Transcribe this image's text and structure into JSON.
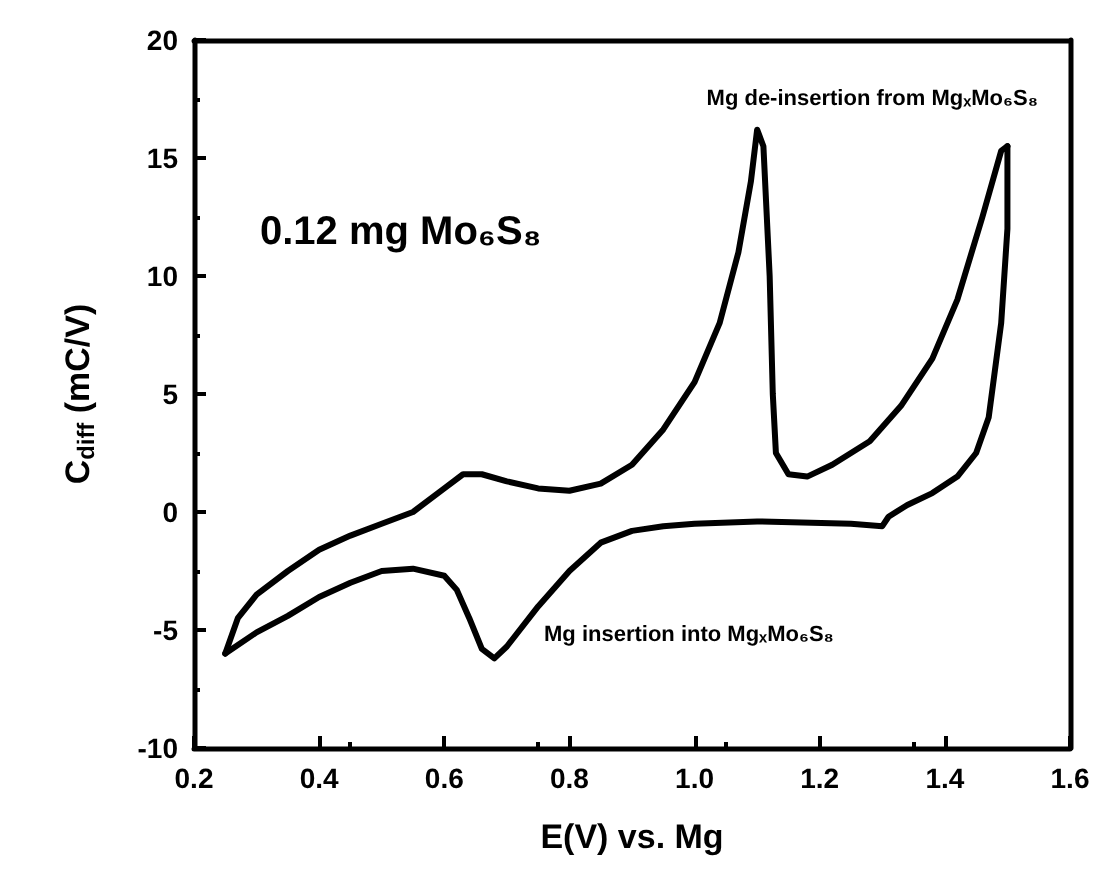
{
  "chart_data": {
    "type": "line",
    "xlabel": "E(V) vs. Mg",
    "ylabel": "C$_{diff}$ (mC/V)",
    "xlim": [
      0.2,
      1.6
    ],
    "xticks": [
      0.2,
      0.4,
      0.6,
      0.8,
      {
        "value": 1,
        "label": "1.0"
      },
      1.2,
      1.4,
      1.6
    ],
    "ylim": [
      -10,
      20
    ],
    "yticks": [
      -10,
      -5,
      0,
      5,
      10,
      15,
      20
    ],
    "line_style": "solid",
    "series": [
      {
        "color": "#000000",
        "x": [
          0.25,
          0.27,
          0.3,
          0.35,
          0.4,
          0.45,
          0.5,
          0.55,
          0.6,
          0.63,
          0.66,
          0.7,
          0.75,
          0.8,
          0.85,
          0.9,
          0.95,
          1.0,
          1.04,
          1.07,
          1.09,
          1.1,
          1.11,
          1.12,
          1.125,
          1.13,
          1.15,
          1.18,
          1.22,
          1.28,
          1.33,
          1.38,
          1.42,
          1.46,
          1.49,
          1.5
        ],
        "values": [
          -6.0,
          -4.5,
          -3.5,
          -2.5,
          -1.6,
          -1.0,
          -0.5,
          0.0,
          1.0,
          1.6,
          1.6,
          1.3,
          1.0,
          0.9,
          1.2,
          2.0,
          3.5,
          5.5,
          8,
          11,
          14,
          16.2,
          15.5,
          10,
          5,
          2.5,
          1.6,
          1.5,
          2.0,
          3,
          4.5,
          6.5,
          9,
          12.5,
          15.3,
          15.5
        ]
      },
      {
        "color": "#000000",
        "x": [
          1.5,
          1.5,
          1.49,
          1.47,
          1.45,
          1.42,
          1.38,
          1.34,
          1.31,
          1.3,
          1.25,
          1.1,
          1.0,
          0.95,
          0.9,
          0.85,
          0.8,
          0.75,
          0.7,
          0.68,
          0.66,
          0.64,
          0.62,
          0.6,
          0.55,
          0.5,
          0.45,
          0.4,
          0.35,
          0.3,
          0.25
        ],
        "values": [
          15.5,
          12,
          8,
          4,
          2.5,
          1.5,
          0.8,
          0.3,
          -0.2,
          -0.6,
          -0.5,
          -0.4,
          -0.5,
          -0.6,
          -0.8,
          -1.3,
          -2.5,
          -4.0,
          -5.7,
          -6.2,
          -5.8,
          -4.5,
          -3.3,
          -2.7,
          -2.4,
          -2.5,
          -3.0,
          -3.6,
          -4.4,
          -5.1,
          -6.0
        ]
      }
    ],
    "annotations": [
      "0.12 mg Mo₆S₈",
      "Mg de-insertion from MgₓMo₆S₈",
      "Mg insertion into MgₓMo₆S₈"
    ]
  }
}
